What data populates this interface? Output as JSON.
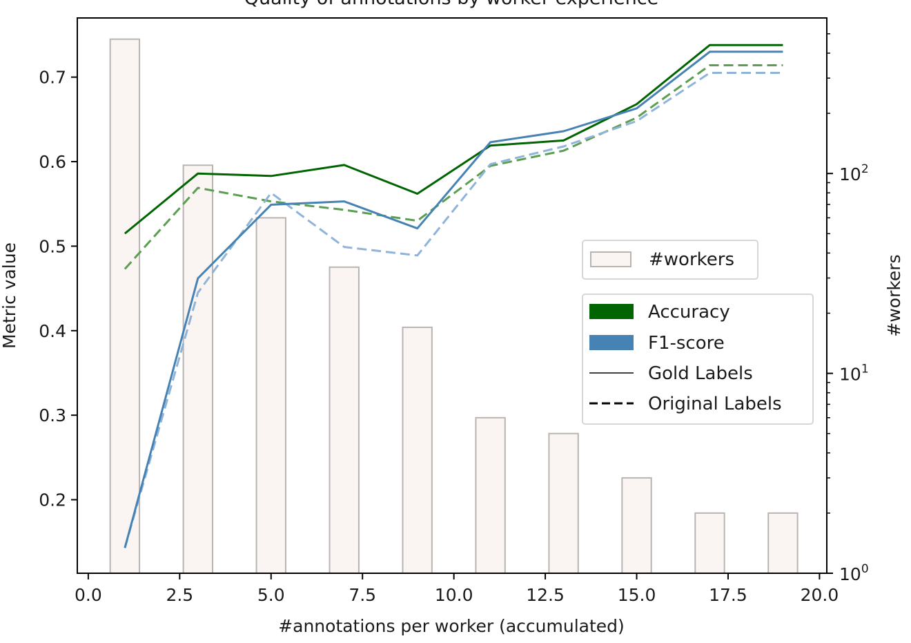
{
  "chart_data": {
    "type": "bar+line",
    "title": "Quality of annotations by worker experience",
    "xlabel": "#annotations per worker (accumulated)",
    "ylabel": "Metric value",
    "y2label": "#workers",
    "xlim": [
      -0.3,
      20.2
    ],
    "ylim": [
      0.113,
      0.77
    ],
    "y2lim": [
      1,
      600
    ],
    "y2scale": "log",
    "x_ticks": [
      "0.0",
      "2.5",
      "5.0",
      "7.5",
      "10.0",
      "12.5",
      "15.0",
      "17.5",
      "20.0"
    ],
    "x_tick_values": [
      0,
      2.5,
      5,
      7.5,
      10,
      12.5,
      15,
      17.5,
      20
    ],
    "y_ticks": [
      "0.2",
      "0.3",
      "0.4",
      "0.5",
      "0.6",
      "0.7"
    ],
    "y_tick_values": [
      0.2,
      0.3,
      0.4,
      0.5,
      0.6,
      0.7
    ],
    "y2_ticks": [
      {
        "value": 1,
        "base": "10",
        "exp": "0"
      },
      {
        "value": 10,
        "base": "10",
        "exp": "1"
      },
      {
        "value": 100,
        "base": "10",
        "exp": "2"
      }
    ],
    "x": [
      1,
      3,
      5,
      7,
      9,
      11,
      13,
      15,
      17,
      19
    ],
    "bars": {
      "name": "#workers",
      "values": [
        470,
        110,
        60,
        34,
        17,
        6,
        5,
        3,
        2,
        2
      ]
    },
    "series": [
      {
        "name": "Accuracy",
        "labels": "Gold Labels",
        "metric": "accuracy",
        "style": "solid",
        "values": [
          0.515,
          0.586,
          0.583,
          0.596,
          0.562,
          0.619,
          0.625,
          0.668,
          0.738,
          0.738
        ]
      },
      {
        "name": "Accuracy",
        "labels": "Original Labels",
        "metric": "accuracy",
        "style": "dashed",
        "values": [
          0.473,
          0.569,
          0.553,
          0.543,
          0.53,
          0.595,
          0.613,
          0.652,
          0.714,
          0.714
        ]
      },
      {
        "name": "F1-score",
        "labels": "Gold Labels",
        "metric": "f1",
        "style": "solid",
        "values": [
          0.143,
          0.462,
          0.549,
          0.553,
          0.521,
          0.623,
          0.636,
          0.663,
          0.73,
          0.73
        ]
      },
      {
        "name": "F1-score",
        "labels": "Original Labels",
        "metric": "f1",
        "style": "dashed",
        "values": [
          0.143,
          0.445,
          0.563,
          0.499,
          0.489,
          0.597,
          0.618,
          0.648,
          0.705,
          0.705
        ]
      }
    ],
    "colors": {
      "accuracy_solid": "#006400",
      "accuracy_dashed": "#5a9e50",
      "f1_solid": "#4682b4",
      "f1_dashed": "#8fb3d9",
      "bar_fill": "#faf5f2",
      "bar_edge": "#b8b4b1"
    },
    "legends": {
      "bars": {
        "placement": "right-middle",
        "entries": [
          "#workers"
        ]
      },
      "lines": {
        "placement": "right-middle",
        "entries": [
          {
            "label": "Accuracy",
            "kind": "patch",
            "color": "#006400"
          },
          {
            "label": "F1-score",
            "kind": "patch",
            "color": "#4682b4"
          },
          {
            "label": "Gold Labels",
            "kind": "solid"
          },
          {
            "label": "Original Labels",
            "kind": "dashed"
          }
        ]
      }
    },
    "grid": false
  }
}
